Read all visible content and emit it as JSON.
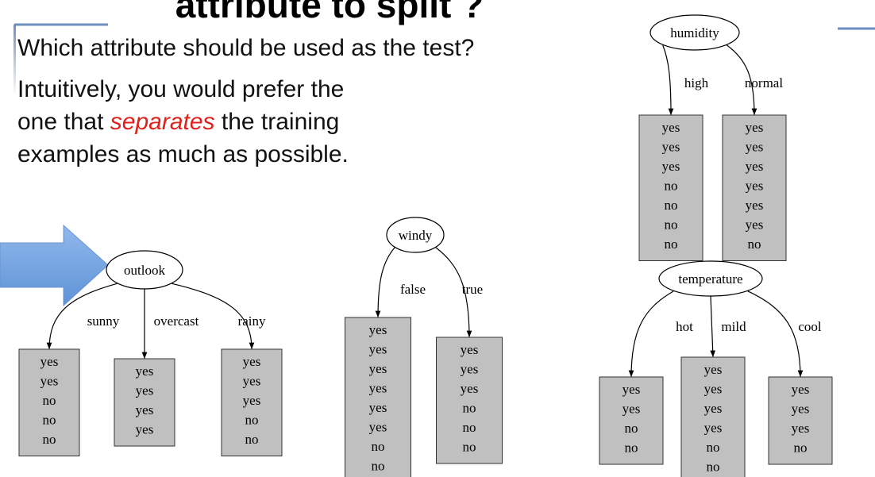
{
  "title": "attribute to split ?",
  "question": "Which attribute should be used as the test?",
  "intuition": {
    "line1": "Intuitively, you would prefer the",
    "line2_before": "one that",
    "emphasis": "separates",
    "line2_after": "the training",
    "line3": "examples as much as possible."
  },
  "trees": [
    {
      "root": "outlook",
      "branches": [
        {
          "label": "sunny",
          "leaves": [
            "yes",
            "yes",
            "no",
            "no",
            "no"
          ]
        },
        {
          "label": "overcast",
          "leaves": [
            "yes",
            "yes",
            "yes",
            "yes"
          ]
        },
        {
          "label": "rainy",
          "leaves": [
            "yes",
            "yes",
            "yes",
            "no",
            "no"
          ]
        }
      ]
    },
    {
      "root": "windy",
      "branches": [
        {
          "label": "false",
          "leaves": [
            "yes",
            "yes",
            "yes",
            "yes",
            "yes",
            "yes",
            "no",
            "no"
          ]
        },
        {
          "label": "true",
          "leaves": [
            "yes",
            "yes",
            "yes",
            "no",
            "no",
            "no"
          ]
        }
      ]
    },
    {
      "root": "humidity",
      "branches": [
        {
          "label": "high",
          "leaves": [
            "yes",
            "yes",
            "yes",
            "no",
            "no",
            "no",
            "no"
          ]
        },
        {
          "label": "normal",
          "leaves": [
            "yes",
            "yes",
            "yes",
            "yes",
            "yes",
            "yes",
            "no"
          ]
        }
      ]
    },
    {
      "root": "temperature",
      "branches": [
        {
          "label": "hot",
          "leaves": [
            "yes",
            "yes",
            "no",
            "no"
          ]
        },
        {
          "label": "mild",
          "leaves": [
            "yes",
            "yes",
            "yes",
            "yes",
            "no",
            "no"
          ]
        },
        {
          "label": "cool",
          "leaves": [
            "yes",
            "yes",
            "yes",
            "no"
          ]
        }
      ]
    }
  ]
}
